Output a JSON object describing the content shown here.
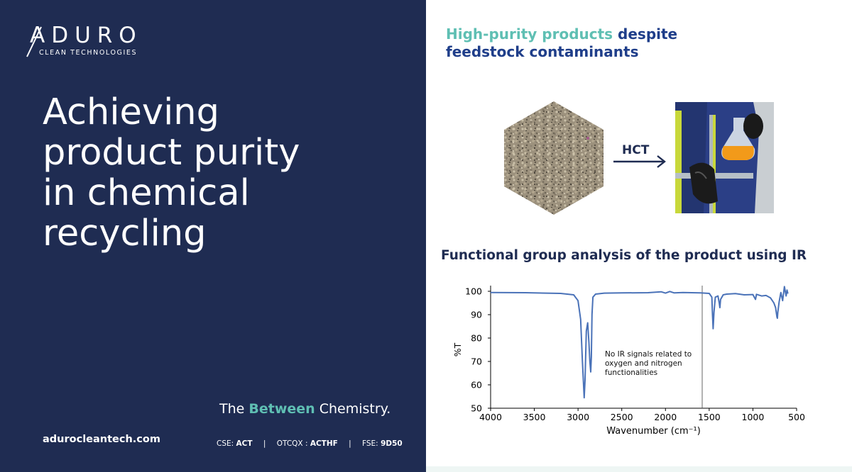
{
  "left": {
    "logo_word": "ADURO",
    "logo_sub": "CLEAN TECHNOLOGIES",
    "headline": [
      "Achieving",
      "product purity",
      "in chemical",
      "recycling"
    ],
    "tagline_pre": "The ",
    "tagline_accent": "Between",
    "tagline_post": " Chemistry.",
    "website": "adurocleantech.com",
    "tickers": [
      {
        "exchange": "CSE:",
        "symbol": "ACT"
      },
      {
        "exchange": "OTCQX :",
        "symbol": "ACTHF"
      },
      {
        "exchange": "FSE:",
        "symbol": "9D50"
      }
    ],
    "ticker_separator": "|"
  },
  "right": {
    "title_teal": "High-purity products",
    "title_blue_1": " despite",
    "title_blue_2": "feedstock contaminants",
    "process_label": "HCT",
    "ir_title": "Functional group analysis of the product using IR"
  },
  "colors": {
    "navy": "#1f2c52",
    "teal": "#5fbfb3",
    "blue": "#1f3e8a",
    "line": "#4a72b8"
  },
  "chart_data": {
    "type": "line",
    "xlabel": "Wavenumber (cm⁻¹)",
    "ylabel": "%T",
    "xlim": [
      4000,
      500
    ],
    "ylim": [
      50,
      100
    ],
    "x_ticks": [
      4000,
      3500,
      3000,
      2500,
      2000,
      1500,
      1000,
      500
    ],
    "y_ticks": [
      50,
      60,
      70,
      80,
      90,
      100
    ],
    "vertical_marker_x": 1580,
    "annotation": [
      "No IR signals related to",
      "oxygen and nitrogen",
      "functionalities"
    ],
    "grid": false,
    "x": [
      4000,
      3600,
      3200,
      3050,
      3000,
      2970,
      2950,
      2930,
      2920,
      2905,
      2890,
      2875,
      2865,
      2855,
      2848,
      2840,
      2830,
      2800,
      2700,
      2500,
      2200,
      2050,
      2000,
      1950,
      1900,
      1800,
      1600,
      1500,
      1470,
      1462,
      1455,
      1445,
      1430,
      1400,
      1385,
      1378,
      1370,
      1340,
      1300,
      1200,
      1100,
      1000,
      970,
      965,
      960,
      900,
      850,
      800,
      760,
      740,
      725,
      720,
      715,
      700,
      680,
      660,
      640,
      620,
      610,
      600
    ],
    "y": [
      99.5,
      99.4,
      99.1,
      98.5,
      96.0,
      88.0,
      70.0,
      54.5,
      62.0,
      83.0,
      86.5,
      78.0,
      70.0,
      65.5,
      72.0,
      90.0,
      97.5,
      98.8,
      99.2,
      99.3,
      99.4,
      99.8,
      99.2,
      99.9,
      99.3,
      99.5,
      99.3,
      99.1,
      97.5,
      90.0,
      84.0,
      91.0,
      97.5,
      98.0,
      95.0,
      93.0,
      96.5,
      98.5,
      98.8,
      99.0,
      98.5,
      98.6,
      96.5,
      97.5,
      98.7,
      98.0,
      98.2,
      97.2,
      95.0,
      93.0,
      89.0,
      88.5,
      91.0,
      95.5,
      99.5,
      96.0,
      102.0,
      98.0,
      100.5,
      99.0
    ]
  }
}
